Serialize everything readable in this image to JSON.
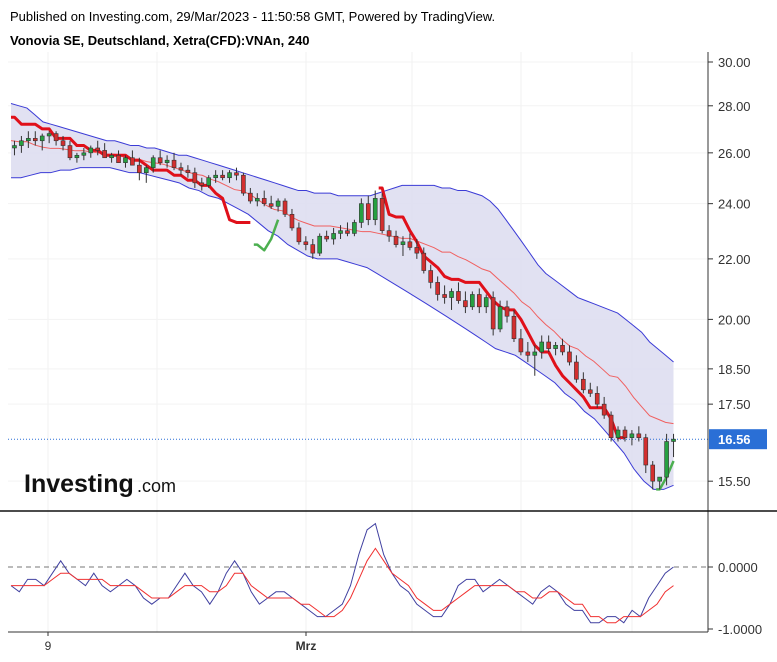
{
  "header": {
    "published": "Published on Investing.com, 29/Mar/2023 - 11:50:58 GMT, Powered by TradingView.",
    "symbol": "Vonovia SE, Deutschland, Xetra(CFD):VNAn, 240"
  },
  "logo": {
    "brand": "Investing",
    "suffix": ".com"
  },
  "colors": {
    "bull": "#26a041",
    "bear": "#d32f2f",
    "supertrend_down": "#e0101a",
    "supertrend_up": "#4caf50",
    "band_fill": "#dcdcf0",
    "band_line": "#3b3bd6",
    "basis": "#f06060",
    "osc_blue": "#4040a0",
    "osc_red": "#f03030",
    "price_line": "#2a6fd6"
  },
  "chart_data": [
    {
      "type": "candlestick",
      "title": "",
      "scale": "log",
      "ylim": [
        15.0,
        30.0
      ],
      "y_ticks": [
        "30.00",
        "28.00",
        "26.00",
        "24.00",
        "22.00",
        "20.00",
        "18.50",
        "17.50",
        "15.50"
      ],
      "y_tick_values": [
        30.0,
        28.0,
        26.0,
        24.0,
        22.0,
        20.0,
        18.5,
        17.5,
        15.5
      ],
      "x_labels": [
        "9",
        "Mrz"
      ],
      "last_price": "16.56",
      "ohlc": [
        [
          26.2,
          26.5,
          25.9,
          26.3
        ],
        [
          26.3,
          26.7,
          26.0,
          26.5
        ],
        [
          26.5,
          26.9,
          26.2,
          26.6
        ],
        [
          26.6,
          26.9,
          26.3,
          26.5
        ],
        [
          26.5,
          26.8,
          26.1,
          26.7
        ],
        [
          26.7,
          26.9,
          26.4,
          26.8
        ],
        [
          26.8,
          26.9,
          26.3,
          26.5
        ],
        [
          26.5,
          26.7,
          26.1,
          26.3
        ],
        [
          26.3,
          26.5,
          25.7,
          25.8
        ],
        [
          25.8,
          26.0,
          25.6,
          25.9
        ],
        [
          25.9,
          26.2,
          25.7,
          26.0
        ],
        [
          26.0,
          26.3,
          25.8,
          26.2
        ],
        [
          26.2,
          26.5,
          25.9,
          26.1
        ],
        [
          26.1,
          26.4,
          25.8,
          25.8
        ],
        [
          25.8,
          26.0,
          25.6,
          25.9
        ],
        [
          25.9,
          26.1,
          25.6,
          25.6
        ],
        [
          25.6,
          25.9,
          25.4,
          25.8
        ],
        [
          25.8,
          26.1,
          25.5,
          25.5
        ],
        [
          25.5,
          25.8,
          24.9,
          25.2
        ],
        [
          25.2,
          25.5,
          24.8,
          25.4
        ],
        [
          25.4,
          25.9,
          25.2,
          25.8
        ],
        [
          25.8,
          26.1,
          25.5,
          25.6
        ],
        [
          25.6,
          25.9,
          25.4,
          25.7
        ],
        [
          25.7,
          26.0,
          25.3,
          25.4
        ],
        [
          25.4,
          25.6,
          25.1,
          25.3
        ],
        [
          25.3,
          25.5,
          25.0,
          25.2
        ],
        [
          25.2,
          25.4,
          24.6,
          24.8
        ],
        [
          24.8,
          25.0,
          24.5,
          24.7
        ],
        [
          24.7,
          25.1,
          24.6,
          25.0
        ],
        [
          25.0,
          25.3,
          24.8,
          25.1
        ],
        [
          25.1,
          25.3,
          24.9,
          25.0
        ],
        [
          25.0,
          25.3,
          24.8,
          25.2
        ],
        [
          25.2,
          25.4,
          24.9,
          25.1
        ],
        [
          25.1,
          25.2,
          24.3,
          24.4
        ],
        [
          24.4,
          24.6,
          24.0,
          24.1
        ],
        [
          24.1,
          24.4,
          23.9,
          24.2
        ],
        [
          24.2,
          24.5,
          23.9,
          24.0
        ],
        [
          24.0,
          24.3,
          23.8,
          23.9
        ],
        [
          23.9,
          24.2,
          23.7,
          24.1
        ],
        [
          24.1,
          24.2,
          23.5,
          23.6
        ],
        [
          23.6,
          23.8,
          23.0,
          23.1
        ],
        [
          23.1,
          23.3,
          22.5,
          22.6
        ],
        [
          22.6,
          22.8,
          22.3,
          22.5
        ],
        [
          22.5,
          22.7,
          22.0,
          22.2
        ],
        [
          22.2,
          22.9,
          22.1,
          22.8
        ],
        [
          22.8,
          23.0,
          22.6,
          22.7
        ],
        [
          22.7,
          23.1,
          22.5,
          22.9
        ],
        [
          22.9,
          23.2,
          22.7,
          23.0
        ],
        [
          23.0,
          23.3,
          22.8,
          22.9
        ],
        [
          22.9,
          23.4,
          22.8,
          23.3
        ],
        [
          23.3,
          24.2,
          23.1,
          24.0
        ],
        [
          24.0,
          24.3,
          23.2,
          23.4
        ],
        [
          23.4,
          24.5,
          23.2,
          24.2
        ],
        [
          24.2,
          24.4,
          22.9,
          23.0
        ],
        [
          23.0,
          23.2,
          22.6,
          22.8
        ],
        [
          22.8,
          23.0,
          22.4,
          22.5
        ],
        [
          22.5,
          22.8,
          22.1,
          22.6
        ],
        [
          22.6,
          22.9,
          22.3,
          22.4
        ],
        [
          22.4,
          22.7,
          22.0,
          22.2
        ],
        [
          22.2,
          22.4,
          21.5,
          21.6
        ],
        [
          21.6,
          21.8,
          21.0,
          21.2
        ],
        [
          21.2,
          21.4,
          20.6,
          20.8
        ],
        [
          20.8,
          21.1,
          20.5,
          20.7
        ],
        [
          20.7,
          21.0,
          20.3,
          20.9
        ],
        [
          20.9,
          21.2,
          20.5,
          20.6
        ],
        [
          20.6,
          20.9,
          20.2,
          20.4
        ],
        [
          20.4,
          20.9,
          20.3,
          20.8
        ],
        [
          20.8,
          21.0,
          20.2,
          20.4
        ],
        [
          20.4,
          20.8,
          20.2,
          20.7
        ],
        [
          20.7,
          20.9,
          19.5,
          19.7
        ],
        [
          19.7,
          20.6,
          19.6,
          20.4
        ],
        [
          20.4,
          20.6,
          19.9,
          20.1
        ],
        [
          20.1,
          20.3,
          19.3,
          19.4
        ],
        [
          19.4,
          19.7,
          18.9,
          19.0
        ],
        [
          19.0,
          19.3,
          18.7,
          18.9
        ],
        [
          18.9,
          19.2,
          18.3,
          19.0
        ],
        [
          19.0,
          19.5,
          18.8,
          19.3
        ],
        [
          19.3,
          19.5,
          19.0,
          19.1
        ],
        [
          19.1,
          19.3,
          18.9,
          19.2
        ],
        [
          19.2,
          19.4,
          18.9,
          19.0
        ],
        [
          19.0,
          19.2,
          18.6,
          18.7
        ],
        [
          18.7,
          18.9,
          18.1,
          18.2
        ],
        [
          18.2,
          18.4,
          17.8,
          17.9
        ],
        [
          17.9,
          18.1,
          17.7,
          17.8
        ],
        [
          17.8,
          18.0,
          17.4,
          17.5
        ],
        [
          17.5,
          17.7,
          17.1,
          17.2
        ],
        [
          17.2,
          17.3,
          16.5,
          16.6
        ],
        [
          16.6,
          16.9,
          16.5,
          16.8
        ],
        [
          16.8,
          16.9,
          16.5,
          16.6
        ],
        [
          16.6,
          16.8,
          16.4,
          16.7
        ],
        [
          16.7,
          16.9,
          16.5,
          16.6
        ],
        [
          16.6,
          16.7,
          15.7,
          15.9
        ],
        [
          15.9,
          16.0,
          15.3,
          15.5
        ],
        [
          15.5,
          15.6,
          15.3,
          15.6
        ],
        [
          15.6,
          16.7,
          15.4,
          16.5
        ],
        [
          16.5,
          16.7,
          16.1,
          16.56
        ]
      ],
      "bollinger_upper": [
        28.1,
        28.0,
        27.9,
        27.6,
        27.3,
        27.2,
        27.1,
        27.0,
        26.9,
        26.8,
        26.7,
        26.6,
        26.5,
        26.5,
        26.4,
        26.3,
        26.3,
        26.2,
        26.2,
        26.1,
        26.0,
        25.9,
        25.9,
        25.8,
        25.7,
        25.6,
        25.5,
        25.4,
        25.3,
        25.2,
        25.1,
        25.0,
        24.9,
        24.8,
        24.7,
        24.6,
        24.5,
        24.5,
        24.4,
        24.4,
        24.4,
        24.3,
        24.3,
        24.3,
        24.3,
        24.3,
        24.4,
        24.5,
        24.6,
        24.7,
        24.7,
        24.7,
        24.7,
        24.7,
        24.6,
        24.6,
        24.5,
        24.5,
        24.4,
        24.3,
        24.1,
        23.8,
        23.4,
        23.0,
        22.6,
        22.2,
        21.8,
        21.5,
        21.3,
        21.1,
        20.9,
        20.7,
        20.6,
        20.5,
        20.4,
        20.3,
        20.2,
        20.0,
        19.8,
        19.6,
        19.3,
        19.1,
        18.9,
        18.7
      ],
      "bollinger_lower": [
        25.0,
        25.0,
        25.1,
        25.2,
        25.2,
        25.3,
        25.3,
        25.4,
        25.4,
        25.4,
        25.4,
        25.3,
        25.2,
        25.2,
        25.1,
        25.0,
        24.9,
        24.8,
        24.6,
        24.5,
        24.3,
        24.2,
        24.0,
        23.8,
        23.6,
        23.3,
        23.0,
        22.8,
        22.5,
        22.3,
        22.1,
        22.0,
        22.0,
        22.0,
        21.9,
        21.8,
        21.7,
        21.5,
        21.3,
        21.1,
        20.9,
        20.7,
        20.5,
        20.3,
        20.1,
        19.9,
        19.7,
        19.5,
        19.3,
        19.1,
        19.0,
        18.9,
        18.7,
        18.5,
        18.3,
        18.1,
        17.8,
        17.6,
        17.3,
        17.1,
        16.8,
        16.5,
        16.2,
        15.8,
        15.5,
        15.3,
        15.3,
        15.4
      ],
      "supertrend_down": [
        27.5,
        27.2,
        27.2,
        27.2,
        27.0,
        27.0,
        26.6,
        26.6,
        26.6,
        26.3,
        26.3,
        26.1,
        26.1,
        25.9,
        25.9,
        25.9,
        25.9,
        25.7,
        25.7,
        25.5,
        25.3,
        25.3,
        25.3,
        25.1,
        25.1,
        24.9,
        24.9,
        24.7,
        24.7,
        24.4,
        24.2,
        23.4,
        23.3,
        23.3,
        23.3
      ],
      "supertrend_down_2": [
        24.6,
        23.6,
        23.5,
        23.5,
        23.0,
        22.6,
        22.1,
        21.9,
        21.7,
        21.4,
        21.3,
        21.3,
        21.2,
        21.2,
        21.2,
        20.9,
        20.6,
        20.4,
        20.3,
        20.3,
        20.0,
        19.6,
        19.2,
        19.0,
        19.0,
        18.6,
        18.3,
        18.1,
        17.9,
        17.7,
        17.4,
        17.4,
        17.4,
        17.1,
        16.6,
        16.6
      ],
      "supertrend_up": [
        22.5,
        22.3,
        22.7,
        23.4
      ],
      "supertrend_up_2": [
        15.3,
        15.6,
        16.0
      ]
    },
    {
      "type": "line",
      "title": "",
      "y_ticks": [
        "0.0000",
        "-1.0000"
      ],
      "y_tick_values": [
        0.0,
        -1.0
      ],
      "series": [
        {
          "values": [
            -0.3,
            -0.4,
            -0.2,
            -0.2,
            -0.3,
            -0.1,
            0.1,
            -0.1,
            -0.2,
            -0.3,
            -0.1,
            -0.3,
            -0.4,
            -0.3,
            -0.2,
            -0.3,
            -0.5,
            -0.6,
            -0.5,
            -0.5,
            -0.3,
            -0.1,
            -0.3,
            -0.4,
            -0.6,
            -0.4,
            -0.1,
            0.1,
            -0.1,
            -0.4,
            -0.6,
            -0.5,
            -0.4,
            -0.4,
            -0.5,
            -0.6,
            -0.7,
            -0.8,
            -0.8,
            -0.7,
            -0.6,
            -0.3,
            0.2,
            0.6,
            0.7,
            0.2,
            -0.1,
            -0.3,
            -0.4,
            -0.6,
            -0.7,
            -0.8,
            -0.8,
            -0.6,
            -0.3,
            -0.2,
            -0.2,
            -0.4,
            -0.3,
            -0.2,
            -0.3,
            -0.4,
            -0.5,
            -0.6,
            -0.4,
            -0.3,
            -0.4,
            -0.6,
            -0.7,
            -0.7,
            -0.9,
            -0.9,
            -0.8,
            -0.8,
            -0.9,
            -0.7,
            -0.8,
            -0.5,
            -0.3,
            -0.1,
            0.0
          ]
        },
        {
          "values": [
            -0.3,
            -0.3,
            -0.3,
            -0.3,
            -0.3,
            -0.2,
            -0.1,
            -0.1,
            -0.2,
            -0.2,
            -0.2,
            -0.2,
            -0.3,
            -0.3,
            -0.3,
            -0.3,
            -0.4,
            -0.5,
            -0.5,
            -0.5,
            -0.4,
            -0.3,
            -0.3,
            -0.3,
            -0.4,
            -0.4,
            -0.3,
            -0.1,
            -0.1,
            -0.3,
            -0.4,
            -0.5,
            -0.5,
            -0.5,
            -0.5,
            -0.6,
            -0.6,
            -0.7,
            -0.8,
            -0.8,
            -0.7,
            -0.5,
            -0.2,
            0.1,
            0.3,
            0.1,
            -0.1,
            -0.2,
            -0.3,
            -0.5,
            -0.6,
            -0.7,
            -0.7,
            -0.6,
            -0.5,
            -0.4,
            -0.3,
            -0.3,
            -0.3,
            -0.3,
            -0.3,
            -0.4,
            -0.4,
            -0.5,
            -0.5,
            -0.4,
            -0.4,
            -0.5,
            -0.6,
            -0.6,
            -0.8,
            -0.8,
            -0.9,
            -0.9,
            -0.8,
            -0.8,
            -0.8,
            -0.7,
            -0.6,
            -0.4,
            -0.3
          ]
        }
      ]
    }
  ]
}
